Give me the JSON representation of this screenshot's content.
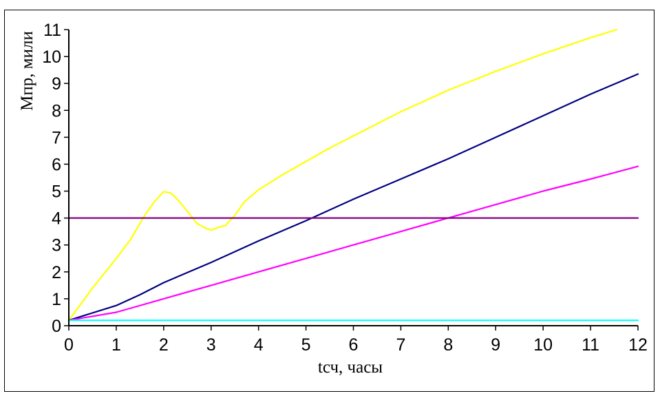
{
  "chart_data": {
    "type": "line",
    "title": "",
    "xlabel": "tсч, часы",
    "ylabel": "Мпр, мили",
    "xlim": [
      0,
      12
    ],
    "ylim": [
      0,
      11
    ],
    "x_ticks": [
      0,
      1,
      2,
      3,
      4,
      5,
      6,
      7,
      8,
      9,
      10,
      11,
      12
    ],
    "y_ticks": [
      0,
      1,
      2,
      3,
      4,
      5,
      6,
      7,
      8,
      9,
      10,
      11
    ],
    "grid": false,
    "legend": "none",
    "series": [
      {
        "color": "#ffff00",
        "x": [
          0,
          0.5,
          1,
          1.3,
          1.6,
          1.8,
          2.0,
          2.15,
          2.3,
          2.5,
          2.7,
          2.85,
          3.0,
          3.15,
          3.3,
          3.5,
          3.7,
          4.0,
          4.5,
          5.0,
          5.5,
          6.0,
          7.0,
          8.0,
          9.0,
          10.0,
          11.0,
          11.55
        ],
        "y": [
          0.2,
          1.4,
          2.5,
          3.2,
          4.1,
          4.6,
          4.98,
          4.93,
          4.68,
          4.25,
          3.8,
          3.65,
          3.55,
          3.65,
          3.72,
          4.1,
          4.6,
          5.05,
          5.6,
          6.1,
          6.6,
          7.05,
          7.95,
          8.75,
          9.45,
          10.1,
          10.7,
          11.0
        ]
      },
      {
        "color": "#000080",
        "x": [
          0,
          1,
          1.5,
          2,
          3,
          4,
          5,
          6,
          7,
          8,
          9,
          10,
          11,
          12
        ],
        "y": [
          0.2,
          0.75,
          1.15,
          1.6,
          2.35,
          3.15,
          3.9,
          4.7,
          5.45,
          6.2,
          7.0,
          7.8,
          8.6,
          9.35
        ]
      },
      {
        "color": "#ff00ff",
        "x": [
          0,
          1,
          2,
          3,
          4,
          5,
          6,
          7,
          8,
          9,
          10,
          11,
          12
        ],
        "y": [
          0.2,
          0.5,
          1.0,
          1.5,
          2.0,
          2.5,
          3.0,
          3.5,
          4.0,
          4.5,
          5.0,
          5.45,
          5.92
        ]
      },
      {
        "color": "#800080",
        "x": [
          0,
          12
        ],
        "y": [
          4.0,
          4.0
        ]
      },
      {
        "color": "#00ffff",
        "x": [
          0,
          12
        ],
        "y": [
          0.2,
          0.2
        ]
      }
    ]
  }
}
